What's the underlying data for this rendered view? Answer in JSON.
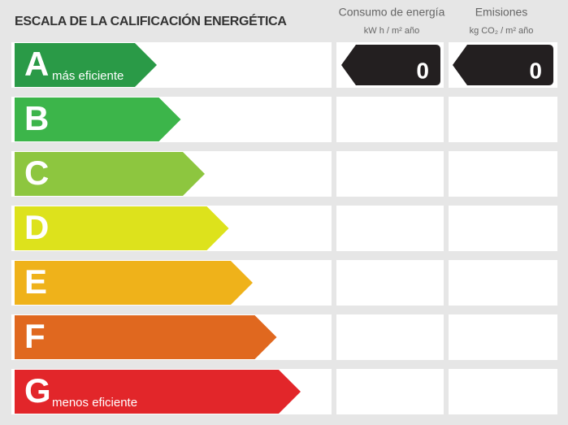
{
  "header": {
    "title": "ESCALA DE LA CALIFICACIÓN ENERGÉTICA",
    "consumption": {
      "label": "Consumo de energía",
      "unit": "kW h / m² año"
    },
    "emissions": {
      "label": "Emisiones",
      "unit": "kg CO₂ / m² año"
    }
  },
  "rows": [
    {
      "letter": "A",
      "note": "más eficiente",
      "color": "#2a9a47",
      "consumption": 0,
      "emissions": 0
    },
    {
      "letter": "B",
      "color": "#3cb54a"
    },
    {
      "letter": "C",
      "color": "#8dc63f"
    },
    {
      "letter": "D",
      "color": "#dde21c"
    },
    {
      "letter": "E",
      "color": "#efb21a"
    },
    {
      "letter": "F",
      "color": "#e0681f"
    },
    {
      "letter": "G",
      "note": "menos eficiente",
      "color": "#e2262a"
    }
  ]
}
